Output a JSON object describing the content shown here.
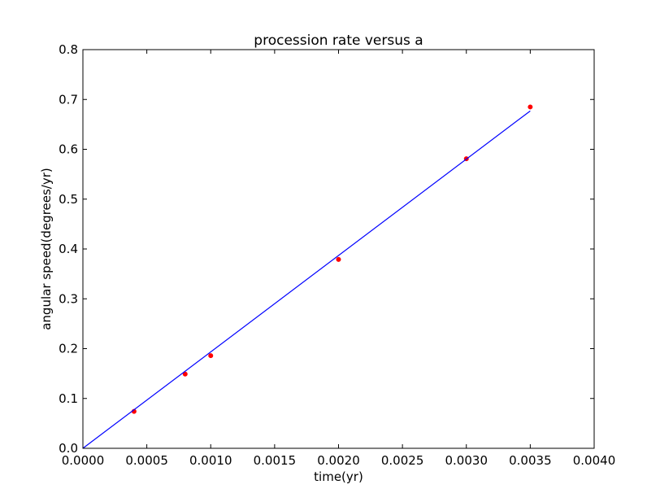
{
  "chart_data": {
    "type": "scatter",
    "title": "procession rate versus a",
    "xlabel": "time(yr)",
    "ylabel": "angular speed(degrees/yr)",
    "xlim": [
      0.0,
      0.004
    ],
    "ylim": [
      0.0,
      0.8
    ],
    "xticks": [
      "0.0000",
      "0.0005",
      "0.0010",
      "0.0015",
      "0.0020",
      "0.0025",
      "0.0030",
      "0.0035",
      "0.0040"
    ],
    "yticks": [
      "0.0",
      "0.1",
      "0.2",
      "0.3",
      "0.4",
      "0.5",
      "0.6",
      "0.7",
      "0.8"
    ],
    "grid": false,
    "series": [
      {
        "kind": "points",
        "color": "#ff0000",
        "x": [
          0.0004,
          0.0008,
          0.001,
          0.002,
          0.003,
          0.0035
        ],
        "y": [
          0.074,
          0.149,
          0.186,
          0.379,
          0.581,
          0.685
        ]
      },
      {
        "kind": "line",
        "color": "#0000ff",
        "x": [
          0.0,
          0.0035
        ],
        "y": [
          0.0,
          0.677
        ]
      }
    ]
  }
}
